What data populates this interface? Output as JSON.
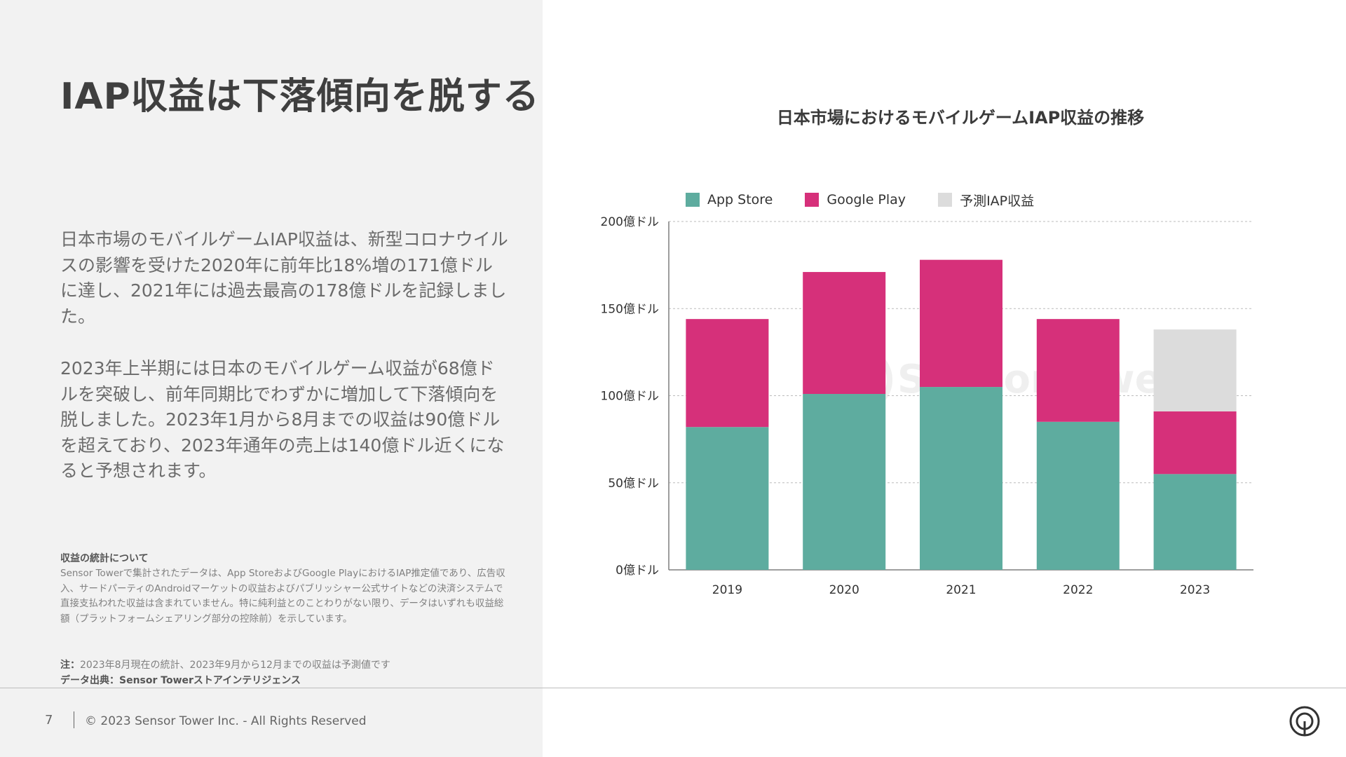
{
  "slide": {
    "title": "IAP収益は下落傾向を脱する",
    "paragraph1": "日本市場のモバイルゲームIAP収益は、新型コロナウイルスの影響を受けた2020年に前年比18%増の171億ドルに達し、2021年には過去最高の178億ドルを記録しました。",
    "paragraph2": "2023年上半期には日本のモバイルゲーム収益が68億ドルを突破し、前年同期比でわずかに増加して下落傾向を脱しました。2023年1月から8月までの収益は90億ドルを超えており、2023年通年の売上は140億ドル近くになると予想されます。",
    "notes": {
      "heading": "収益の統計について",
      "body": "Sensor Towerで集計されたデータは、App StoreおよびGoogle PlayにおけるIAP推定値であり、広告収入、サードパーティのAndroidマーケットの収益およびパブリッシャー公式サイトなどの決済システムで直接支払われた収益は含まれていません。特に純利益とのことわりがない限り、データはいずれも収益総額（プラットフォームシェアリング部分の控除前）を示しています。",
      "note_label": "注：",
      "note_text": "2023年8月現在の統計、2023年9月から12月までの収益は予測値です",
      "source_label": "データ出典：",
      "source_text": "Sensor Towerストアインテリジェンス"
    }
  },
  "footer": {
    "page_number": "7",
    "copyright": "© 2023 Sensor Tower Inc. - All Rights Reserved",
    "logo_icon": "sensor-tower-logo-icon"
  },
  "colors": {
    "app_store": "#5eac9f",
    "google_play": "#d6307a",
    "forecast": "#dcdcdc",
    "axis": "#7f7f7f",
    "grid": "#bbbbbb"
  },
  "chart_data": {
    "type": "bar",
    "stacked": true,
    "title": "日本市場におけるモバイルゲームIAP収益の推移",
    "categories": [
      "2019",
      "2020",
      "2021",
      "2022",
      "2023"
    ],
    "series": [
      {
        "name": "App Store",
        "values": [
          82,
          101,
          105,
          85,
          55
        ]
      },
      {
        "name": "Google Play",
        "values": [
          62,
          70,
          73,
          59,
          36
        ]
      },
      {
        "name": "予測IAP収益",
        "values": [
          0,
          0,
          0,
          0,
          47
        ]
      }
    ],
    "ylim": [
      0,
      200
    ],
    "yticks": [
      0,
      50,
      100,
      150,
      200
    ],
    "ytick_labels": [
      "0億ドル",
      "50億ドル",
      "100億ドル",
      "150億ドル",
      "200億ドル"
    ],
    "xlabel": "",
    "ylabel": "",
    "grid": "dashed horizontal",
    "legend_position": "top-left",
    "watermark": "SensorTower"
  }
}
